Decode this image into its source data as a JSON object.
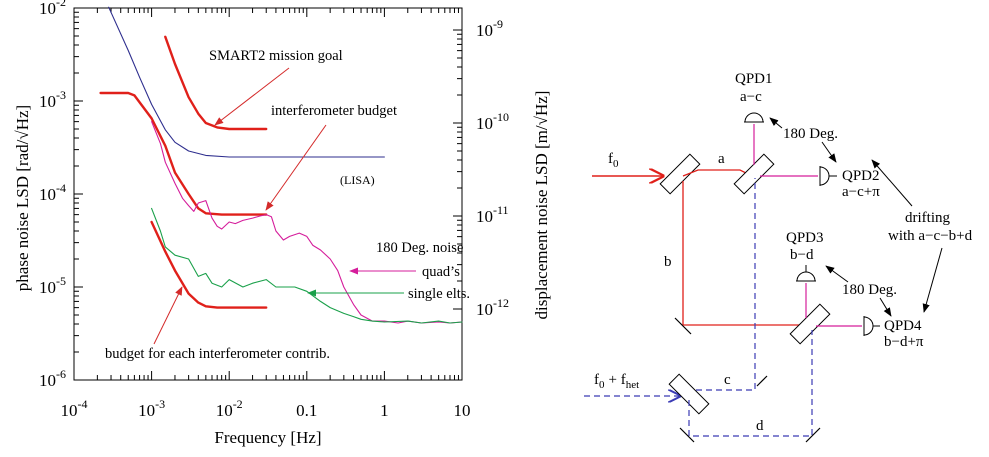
{
  "colors": {
    "red": "#e0201a",
    "magenta": "#d51d9b",
    "green": "#1aa04a",
    "blue": "#2e2e8e",
    "dashed_blue": "#3b3bb5",
    "arrow_red": "#d42b2b"
  },
  "chart_data": {
    "type": "line",
    "xlabel": "Frequency [Hz]",
    "ylabel_left": "phase noise LSD [rad/√Hz]",
    "ylabel_right": "displacement noise LSD [m/√Hz]",
    "xscale": "log",
    "yscale": "log",
    "xlim": [
      0.0001,
      10
    ],
    "ylim": [
      1e-06,
      0.01
    ],
    "x_ticks": [
      {
        "value": 0.0001,
        "base": "10",
        "exp": "-4"
      },
      {
        "value": 0.001,
        "base": "10",
        "exp": "-3"
      },
      {
        "value": 0.01,
        "base": "10",
        "exp": "-2"
      },
      {
        "value": 0.1,
        "base": "0.1",
        "exp": ""
      },
      {
        "value": 1,
        "base": "1",
        "exp": ""
      },
      {
        "value": 10,
        "base": "10",
        "exp": ""
      }
    ],
    "y_ticks_left": [
      {
        "value": 1e-06,
        "base": "10",
        "exp": "-6"
      },
      {
        "value": 1e-05,
        "base": "10",
        "exp": "-5"
      },
      {
        "value": 0.0001,
        "base": "10",
        "exp": "-4"
      },
      {
        "value": 0.001,
        "base": "10",
        "exp": "-3"
      },
      {
        "value": 0.01,
        "base": "10",
        "exp": "-2"
      }
    ],
    "y_ticks_right": [
      {
        "value": 5.8e-06,
        "base": "10",
        "exp": "-12"
      },
      {
        "value": 5.8e-05,
        "base": "10",
        "exp": "-11"
      },
      {
        "value": 0.00058,
        "base": "10",
        "exp": "-10"
      },
      {
        "value": 0.0058,
        "base": "10",
        "exp": "-9"
      }
    ],
    "series": [
      {
        "key": "smart2",
        "color": "#e0201a",
        "width": 2.4,
        "x": [
          0.0015,
          0.002,
          0.003,
          0.004,
          0.005,
          0.007,
          0.01,
          0.02,
          0.03
        ],
        "y": [
          0.0049,
          0.0025,
          0.0011,
          0.00073,
          0.00058,
          0.00052,
          0.0005,
          0.0005,
          0.0005
        ]
      },
      {
        "key": "lisa",
        "color": "#2e2e8e",
        "width": 1.1,
        "x": [
          0.00028,
          0.0005,
          0.0007,
          0.001,
          0.0015,
          0.002,
          0.003,
          0.005,
          0.01,
          0.1,
          1
        ],
        "y": [
          0.0102,
          0.0035,
          0.0018,
          0.00092,
          0.00049,
          0.00036,
          0.00029,
          0.00026,
          0.00025,
          0.00025,
          0.00025
        ]
      },
      {
        "key": "interferometer",
        "color": "#e0201a",
        "width": 2.4,
        "x": [
          0.00022,
          0.0005,
          0.0006,
          0.001,
          0.0015,
          0.002,
          0.003,
          0.004,
          0.005,
          0.008,
          0.01,
          0.02,
          0.03
        ],
        "y": [
          0.00122,
          0.00122,
          0.00115,
          0.00065,
          0.00033,
          0.00017,
          0.0001,
          7e-05,
          6.2e-05,
          6e-05,
          6e-05,
          6e-05,
          6e-05
        ]
      },
      {
        "key": "noise180",
        "color": "#d51d9b",
        "width": 1.1,
        "x": [
          0.001,
          0.0013,
          0.0015,
          0.002,
          0.0025,
          0.003,
          0.0035,
          0.004,
          0.005,
          0.006,
          0.007,
          0.008,
          0.01,
          0.012,
          0.015,
          0.02,
          0.025,
          0.03,
          0.035,
          0.04,
          0.05,
          0.06,
          0.08,
          0.1,
          0.12,
          0.15,
          0.2,
          0.25,
          0.3,
          0.4,
          0.5,
          0.7,
          1,
          1.5,
          2,
          3,
          5,
          7,
          10
        ],
        "y": [
          0.0006,
          0.00035,
          0.00022,
          0.00013,
          9e-05,
          7.5e-05,
          6.5e-05,
          8e-05,
          8.5e-05,
          5.5e-05,
          4.5e-05,
          4.2e-05,
          5e-05,
          4.8e-05,
          5.2e-05,
          5.5e-05,
          5.8e-05,
          6e-05,
          5.7e-05,
          4e-05,
          3.2e-05,
          3.5e-05,
          3.8e-05,
          3.5e-05,
          2.8e-05,
          2.5e-05,
          2e-05,
          1.5e-05,
          1e-05,
          6.5e-06,
          5e-06,
          4.3e-06,
          4.3e-06,
          4.1e-06,
          4.3e-06,
          4.1e-06,
          4.2e-06,
          4.1e-06,
          4.2e-06
        ]
      },
      {
        "key": "green",
        "color": "#1aa04a",
        "width": 1.1,
        "x": [
          0.001,
          0.0013,
          0.0015,
          0.002,
          0.003,
          0.004,
          0.005,
          0.006,
          0.008,
          0.01,
          0.015,
          0.02,
          0.03,
          0.04,
          0.05,
          0.07,
          0.1,
          0.15,
          0.2,
          0.3,
          0.4,
          0.5,
          0.7,
          1,
          2,
          3,
          5,
          7,
          10
        ],
        "y": [
          7e-05,
          4e-05,
          2.7e-05,
          2.2e-05,
          2e-05,
          1.3e-05,
          1.4e-05,
          1.1e-05,
          1e-05,
          1.2e-05,
          1e-05,
          1.1e-05,
          1.2e-05,
          1e-05,
          1e-05,
          1e-05,
          9e-06,
          7e-06,
          6e-06,
          5.2e-06,
          4.8e-06,
          4.5e-06,
          4.3e-06,
          4.2e-06,
          4.3e-06,
          4.1e-06,
          4.3e-06,
          4.1e-06,
          4.2e-06
        ]
      },
      {
        "key": "single_budget",
        "color": "#e0201a",
        "width": 2.4,
        "x": [
          0.001,
          0.0015,
          0.002,
          0.003,
          0.004,
          0.005,
          0.007,
          0.01,
          0.02,
          0.03
        ],
        "y": [
          5e-05,
          2.4e-05,
          1.5e-05,
          8.5e-06,
          6.8e-06,
          6.2e-06,
          6e-06,
          6e-06,
          6e-06,
          6e-06
        ]
      }
    ],
    "annotations": {
      "smart2_goal": "SMART2 mission goal",
      "interferometer_budget": "interferometer budget",
      "lisa": "(LISA)",
      "noise180": "180 Deg. noise",
      "quads": "quad’s",
      "single_elts": "single elts.",
      "budget_each": "budget for each interferometer contrib."
    }
  },
  "diagram": {
    "f0": "f",
    "f0_sub": "0",
    "fhet_left": "f",
    "fhet_left_sub": "0",
    "fhet_plus": "+ f",
    "fhet_sub": "het",
    "beam_a": "a",
    "beam_b": "b",
    "beam_c": "c",
    "beam_d": "d",
    "qpd1": "QPD1",
    "qpd1_combo": "a−c",
    "qpd2": "QPD2",
    "qpd2_combo": "a−c+π",
    "qpd3": "QPD3",
    "qpd3_combo": "b−d",
    "qpd4": "QPD4",
    "qpd4_combo": "b−d+π",
    "deg180_top": "180 Deg.",
    "deg180_bottom": "180 Deg.",
    "drifting_1": "drifting",
    "drifting_2": "with a−c−b+d"
  }
}
